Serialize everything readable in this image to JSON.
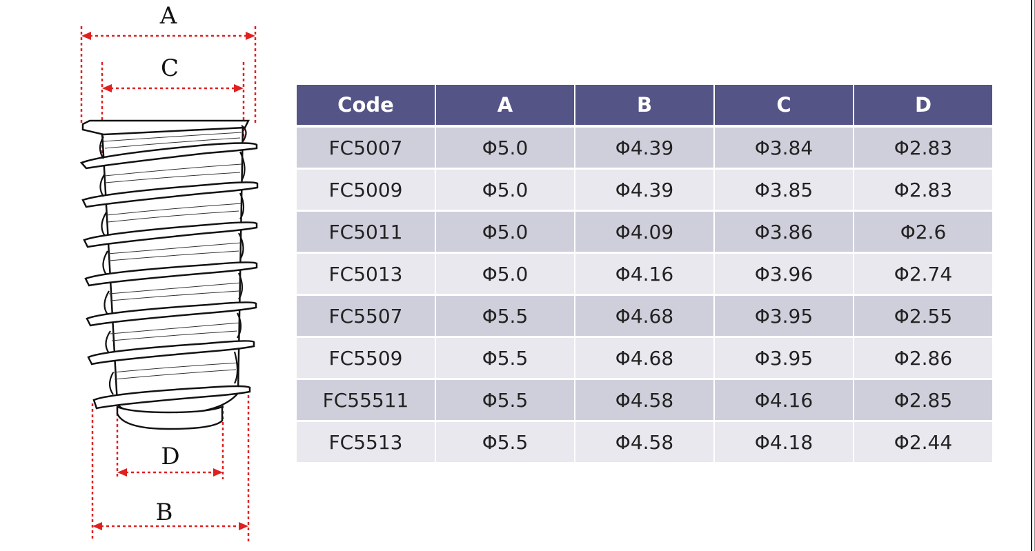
{
  "diagram": {
    "labels": {
      "a": "A",
      "b": "B",
      "c": "C",
      "d": "D"
    }
  },
  "table": {
    "headers": [
      "Code",
      "A",
      "B",
      "C",
      "D"
    ],
    "rows": [
      [
        "FC5007",
        "Φ5.0",
        "Φ4.39",
        "Φ3.84",
        "Φ2.83"
      ],
      [
        "FC5009",
        "Φ5.0",
        "Φ4.39",
        "Φ3.85",
        "Φ2.83"
      ],
      [
        "FC5011",
        "Φ5.0",
        "Φ4.09",
        "Φ3.86",
        "Φ2.6"
      ],
      [
        "FC5013",
        "Φ5.0",
        "Φ4.16",
        "Φ3.96",
        "Φ2.74"
      ],
      [
        "FC5507",
        "Φ5.5",
        "Φ4.68",
        "Φ3.95",
        "Φ2.55"
      ],
      [
        "FC5509",
        "Φ5.5",
        "Φ4.68",
        "Φ3.95",
        "Φ2.86"
      ],
      [
        "FC55511",
        "Φ5.5",
        "Φ4.58",
        "Φ4.16",
        "Φ2.85"
      ],
      [
        "FC5513",
        "Φ5.5",
        "Φ4.58",
        "Φ4.18",
        "Φ2.44"
      ]
    ]
  },
  "colors": {
    "header_bg": "#545486",
    "row_odd": "#cfcfdc",
    "row_even": "#e8e8ee",
    "dimension_line": "#e02020"
  }
}
